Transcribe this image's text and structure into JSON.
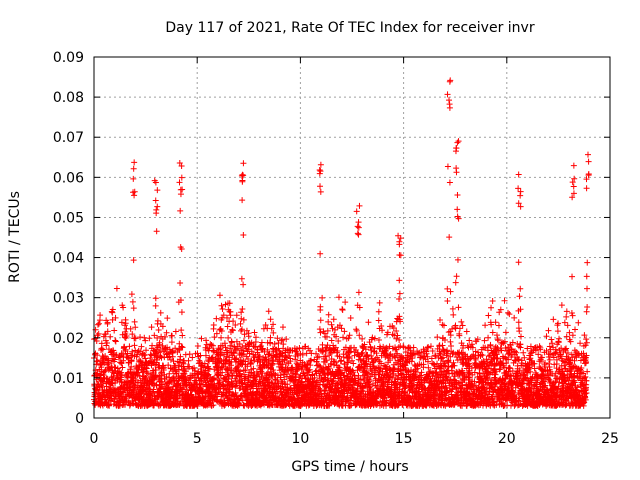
{
  "chart_data": {
    "type": "scatter",
    "title": "Day 117 of 2021, Rate Of TEC Index for receiver invr",
    "xlabel": "GPS time / hours",
    "ylabel": "ROTI / TECUs",
    "xlim": [
      0,
      25
    ],
    "ylim": [
      0,
      0.09
    ],
    "xticks": [
      0,
      5,
      10,
      15,
      20,
      25
    ],
    "xtick_labels": [
      "0",
      "5",
      "10",
      "15",
      "20",
      "25"
    ],
    "yticks": [
      0,
      0.01,
      0.02,
      0.03,
      0.04,
      0.05,
      0.06,
      0.07,
      0.08,
      0.09
    ],
    "ytick_labels": [
      "0",
      "0.01",
      "0.02",
      "0.03",
      "0.04",
      "0.05",
      "0.06",
      "0.07",
      "0.08",
      "0.09"
    ],
    "grid": true,
    "marker": "+",
    "color": "#ff0000",
    "series": [
      {
        "name": "ROTI",
        "x_range": [
          0,
          23.9
        ],
        "typical_range": [
          0.003,
          0.03
        ],
        "peaks": [
          {
            "x": 1.9,
            "y": 0.064
          },
          {
            "x": 3.0,
            "y": 0.06
          },
          {
            "x": 4.2,
            "y": 0.064
          },
          {
            "x": 7.2,
            "y": 0.066
          },
          {
            "x": 11.0,
            "y": 0.065
          },
          {
            "x": 12.8,
            "y": 0.053
          },
          {
            "x": 14.8,
            "y": 0.047
          },
          {
            "x": 17.2,
            "y": 0.086
          },
          {
            "x": 17.6,
            "y": 0.072
          },
          {
            "x": 20.6,
            "y": 0.061
          },
          {
            "x": 23.2,
            "y": 0.063
          },
          {
            "x": 23.9,
            "y": 0.066
          }
        ]
      }
    ]
  }
}
